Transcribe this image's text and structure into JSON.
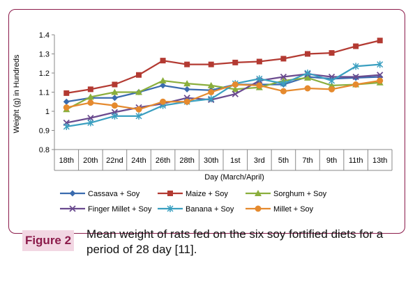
{
  "figure": {
    "label": "Figure 2",
    "caption": "Mean weight of rats fed on the six soy fortified diets for a period of 28 day [11]."
  },
  "chart_data": {
    "type": "line",
    "title": "",
    "xlabel": "Day (March/April)",
    "ylabel": "Weight (g) in Hundreds",
    "ylim": [
      0.8,
      1.4
    ],
    "yticks": [
      "0.8",
      "0.9",
      "1",
      "1.1",
      "1.2",
      "1.3",
      "1.4"
    ],
    "grid": false,
    "legend": "bottom",
    "categories": [
      "18th",
      "20th",
      "22nd",
      "24th",
      "26th",
      "28th",
      "30th",
      "1st",
      "3rd",
      "5th",
      "7th",
      "9th",
      "11th",
      "13th"
    ],
    "series": [
      {
        "name": "Cassava + Soy",
        "color": "#3A6BAE",
        "marker": "diamond",
        "values": [
          1.05,
          1.07,
          1.07,
          1.1,
          1.135,
          1.115,
          1.11,
          1.14,
          1.14,
          1.14,
          1.18,
          1.17,
          1.175,
          1.18
        ]
      },
      {
        "name": "Maize + Soy",
        "color": "#B33A32",
        "marker": "square",
        "values": [
          1.095,
          1.115,
          1.14,
          1.19,
          1.265,
          1.245,
          1.245,
          1.255,
          1.26,
          1.275,
          1.3,
          1.305,
          1.34,
          1.37
        ]
      },
      {
        "name": "Sorghum + Soy",
        "color": "#8AAE3C",
        "marker": "triangle",
        "values": [
          1.01,
          1.075,
          1.1,
          1.1,
          1.16,
          1.145,
          1.135,
          1.115,
          1.125,
          1.16,
          1.175,
          1.135,
          1.14,
          1.15
        ]
      },
      {
        "name": "Finger Millet + Soy",
        "color": "#6A4A8E",
        "marker": "x",
        "values": [
          0.94,
          0.965,
          0.995,
          1.02,
          1.04,
          1.07,
          1.06,
          1.09,
          1.16,
          1.18,
          1.195,
          1.18,
          1.18,
          1.19
        ]
      },
      {
        "name": "Banana + Soy",
        "color": "#3A9FC0",
        "marker": "star",
        "values": [
          0.92,
          0.94,
          0.975,
          0.975,
          1.03,
          1.05,
          1.065,
          1.145,
          1.17,
          1.145,
          1.2,
          1.16,
          1.235,
          1.245
        ]
      },
      {
        "name": "Millet + Soy",
        "color": "#E58A2E",
        "marker": "circle",
        "values": [
          1.02,
          1.045,
          1.03,
          1.01,
          1.05,
          1.05,
          1.1,
          1.14,
          1.135,
          1.105,
          1.12,
          1.115,
          1.14,
          1.16
        ]
      }
    ]
  }
}
